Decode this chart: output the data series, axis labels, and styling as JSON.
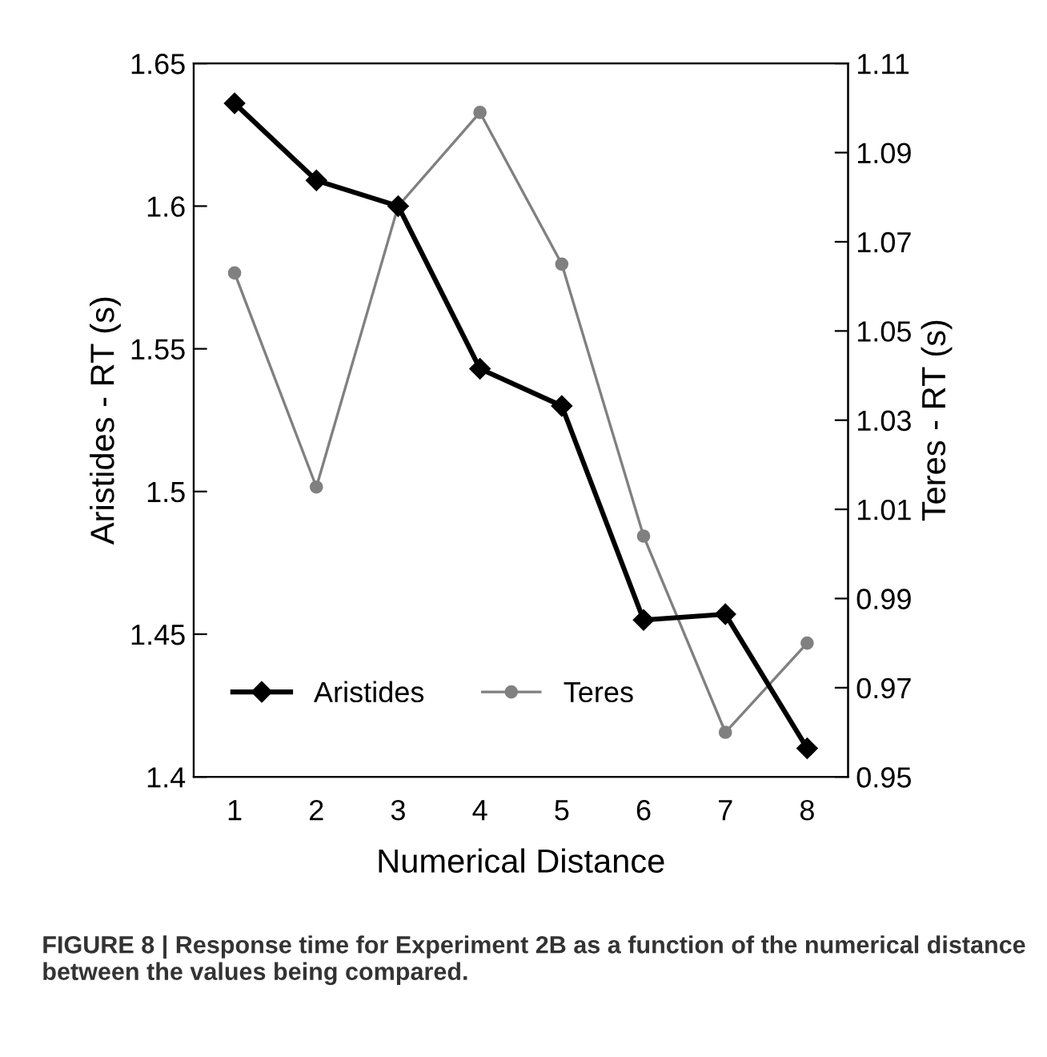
{
  "chart_data": {
    "type": "line",
    "xlabel": "Numerical Distance",
    "ylabel": "Aristides - RT (s)",
    "y2label": "Teres - RT (s)",
    "categories": [
      "1",
      "2",
      "3",
      "4",
      "5",
      "6",
      "7",
      "8"
    ],
    "series": [
      {
        "name": "Aristides",
        "color": "#000000",
        "marker": "diamond",
        "values": [
          1.636,
          1.609,
          1.6,
          1.543,
          1.53,
          1.455,
          1.457,
          1.41
        ]
      },
      {
        "name": "Teres",
        "color": "#808080",
        "marker": "circle",
        "axis": "y2",
        "values": [
          1.063,
          1.015,
          1.078,
          1.099,
          1.065,
          1.004,
          0.96,
          0.98
        ]
      }
    ],
    "ylim": [
      1.4,
      1.65
    ],
    "yticks": [
      1.4,
      1.45,
      1.5,
      1.55,
      1.6,
      1.65
    ],
    "y2lim": [
      0.95,
      1.11
    ],
    "y2ticks": [
      0.95,
      0.97,
      0.99,
      1.01,
      1.03,
      1.05,
      1.07,
      1.09,
      1.11
    ],
    "grid": false,
    "legend": "bottom left",
    "annotations": [
      "FIGURE 8 | Response time for Experiment 2B as a function of the numerical distance between the values being compared."
    ]
  }
}
